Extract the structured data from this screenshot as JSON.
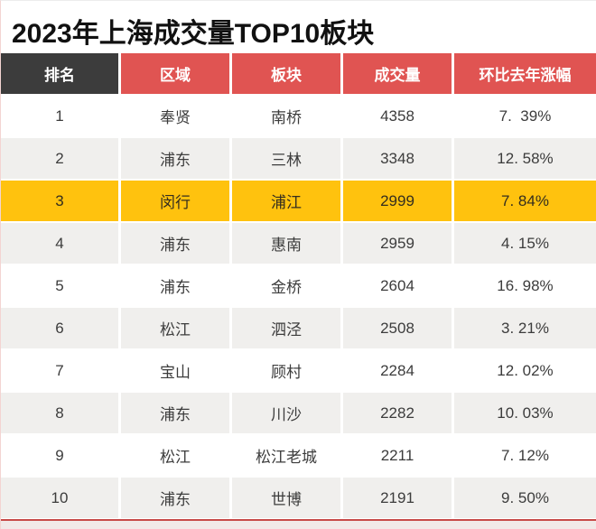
{
  "title": "2023年上海成交量TOP10板块",
  "colors": {
    "header_dark": "#3c3c3c",
    "header_red": "#e05452",
    "highlight_yellow": "#ffc20e",
    "row_white": "#ffffff",
    "row_gray": "#f0efed",
    "bottom_line_red": "#c74a48",
    "bottom_strip_pink": "#f1e9e8"
  },
  "chart_data": {
    "type": "table",
    "title": "2023年上海成交量TOP10板块",
    "columns": [
      "排名",
      "区域",
      "板块",
      "成交量",
      "环比去年涨幅"
    ],
    "highlighted_rank": "3",
    "rows": [
      {
        "rank": "1",
        "region": "奉贤",
        "block": "南桥",
        "volume": "4358",
        "change": "7.  39%"
      },
      {
        "rank": "2",
        "region": "浦东",
        "block": "三林",
        "volume": "3348",
        "change": "12. 58%"
      },
      {
        "rank": "3",
        "region": "闵行",
        "block": "浦江",
        "volume": "2999",
        "change": "7. 84%"
      },
      {
        "rank": "4",
        "region": "浦东",
        "block": "惠南",
        "volume": "2959",
        "change": "4. 15%"
      },
      {
        "rank": "5",
        "region": "浦东",
        "block": "金桥",
        "volume": "2604",
        "change": "16. 98%"
      },
      {
        "rank": "6",
        "region": "松江",
        "block": "泗泾",
        "volume": "2508",
        "change": "3. 21%"
      },
      {
        "rank": "7",
        "region": "宝山",
        "block": "顾村",
        "volume": "2284",
        "change": "12. 02%"
      },
      {
        "rank": "8",
        "region": "浦东",
        "block": "川沙",
        "volume": "2282",
        "change": "10. 03%"
      },
      {
        "rank": "9",
        "region": "松江",
        "block": "松江老城",
        "volume": "2211",
        "change": "7. 12%"
      },
      {
        "rank": "10",
        "region": "浦东",
        "block": "世博",
        "volume": "2191",
        "change": "9. 50%"
      }
    ]
  }
}
